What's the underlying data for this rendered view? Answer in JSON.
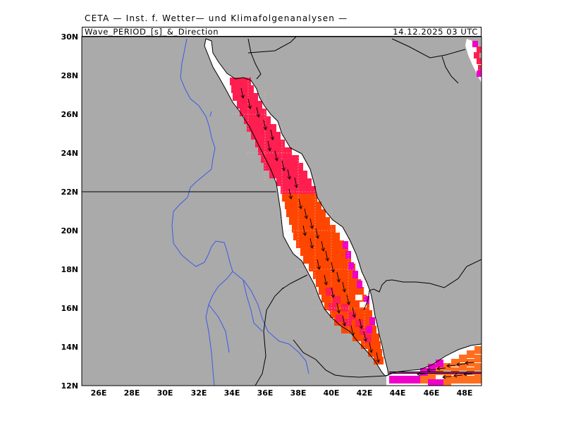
{
  "header": {
    "institute": "CETA — Inst. f. Wetter— und Klimafolgenanalysen —",
    "variable": "Wave_PERIOD_[s]_&_Direction",
    "datetime": "14.12.2025 03 UTC"
  },
  "map": {
    "lon_range": [
      25,
      49
    ],
    "lat_range": [
      12,
      30
    ],
    "x_ticks": [
      "26E",
      "28E",
      "30E",
      "32E",
      "34E",
      "36E",
      "38E",
      "40E",
      "42E",
      "44E",
      "46E",
      "48E"
    ],
    "y_ticks": [
      "30N",
      "28N",
      "26N",
      "24N",
      "22N",
      "20N",
      "18N",
      "16N",
      "14N",
      "12N"
    ],
    "colors": {
      "land": "#aaaaaa",
      "sea": "#ffffff",
      "crimson": "#ff1e50",
      "orange_red": "#ff4600",
      "orange": "#ff6e1e",
      "magenta": "#f000c8",
      "light_orange": "#ff8c3c",
      "borders": "#000000",
      "rivers": "#3c5ae6"
    }
  }
}
